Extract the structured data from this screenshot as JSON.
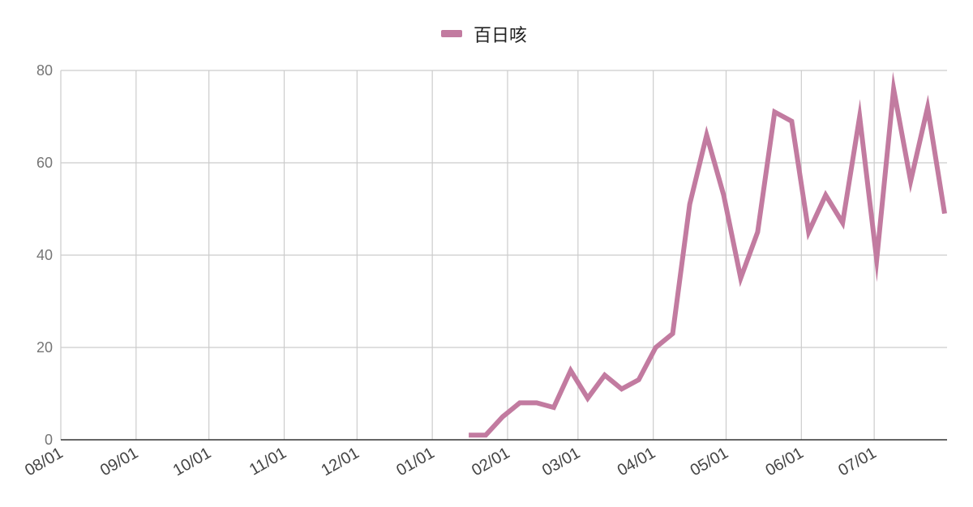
{
  "chart_data": {
    "type": "line",
    "title": "",
    "xlabel": "",
    "ylabel": "",
    "x_axis_kind": "date",
    "x_ticks": [
      "08/01",
      "09/01",
      "10/01",
      "11/01",
      "12/01",
      "01/01",
      "02/01",
      "03/01",
      "04/01",
      "05/01",
      "06/01",
      "07/01"
    ],
    "x_tick_dates": [
      "2023-08-01",
      "2023-09-01",
      "2023-10-01",
      "2023-11-01",
      "2023-12-01",
      "2024-01-01",
      "2024-02-01",
      "2024-03-01",
      "2024-04-01",
      "2024-05-01",
      "2024-06-01",
      "2024-07-01"
    ],
    "x_range": [
      "2023-08-01",
      "2024-07-31"
    ],
    "ylim": [
      0,
      80
    ],
    "y_ticks": [
      0,
      20,
      40,
      60,
      80
    ],
    "grid": true,
    "legend_position": "top-center",
    "series": [
      {
        "name": "百日咳",
        "color": "#c27ba0",
        "points": [
          {
            "x": "2024-01-16",
            "y": 1
          },
          {
            "x": "2024-01-23",
            "y": 1
          },
          {
            "x": "2024-01-30",
            "y": 5
          },
          {
            "x": "2024-02-06",
            "y": 8
          },
          {
            "x": "2024-02-13",
            "y": 8
          },
          {
            "x": "2024-02-20",
            "y": 7
          },
          {
            "x": "2024-02-27",
            "y": 15
          },
          {
            "x": "2024-03-05",
            "y": 9
          },
          {
            "x": "2024-03-12",
            "y": 14
          },
          {
            "x": "2024-03-19",
            "y": 11
          },
          {
            "x": "2024-03-26",
            "y": 13
          },
          {
            "x": "2024-04-02",
            "y": 20
          },
          {
            "x": "2024-04-09",
            "y": 23
          },
          {
            "x": "2024-04-16",
            "y": 51
          },
          {
            "x": "2024-04-23",
            "y": 66
          },
          {
            "x": "2024-04-30",
            "y": 53
          },
          {
            "x": "2024-05-07",
            "y": 35
          },
          {
            "x": "2024-05-14",
            "y": 45
          },
          {
            "x": "2024-05-21",
            "y": 71
          },
          {
            "x": "2024-05-28",
            "y": 69
          },
          {
            "x": "2024-06-04",
            "y": 45
          },
          {
            "x": "2024-06-11",
            "y": 53
          },
          {
            "x": "2024-06-18",
            "y": 47
          },
          {
            "x": "2024-06-25",
            "y": 70
          },
          {
            "x": "2024-07-02",
            "y": 39
          },
          {
            "x": "2024-07-09",
            "y": 76
          },
          {
            "x": "2024-07-16",
            "y": 56
          },
          {
            "x": "2024-07-23",
            "y": 72
          },
          {
            "x": "2024-07-30",
            "y": 49
          }
        ]
      }
    ]
  }
}
